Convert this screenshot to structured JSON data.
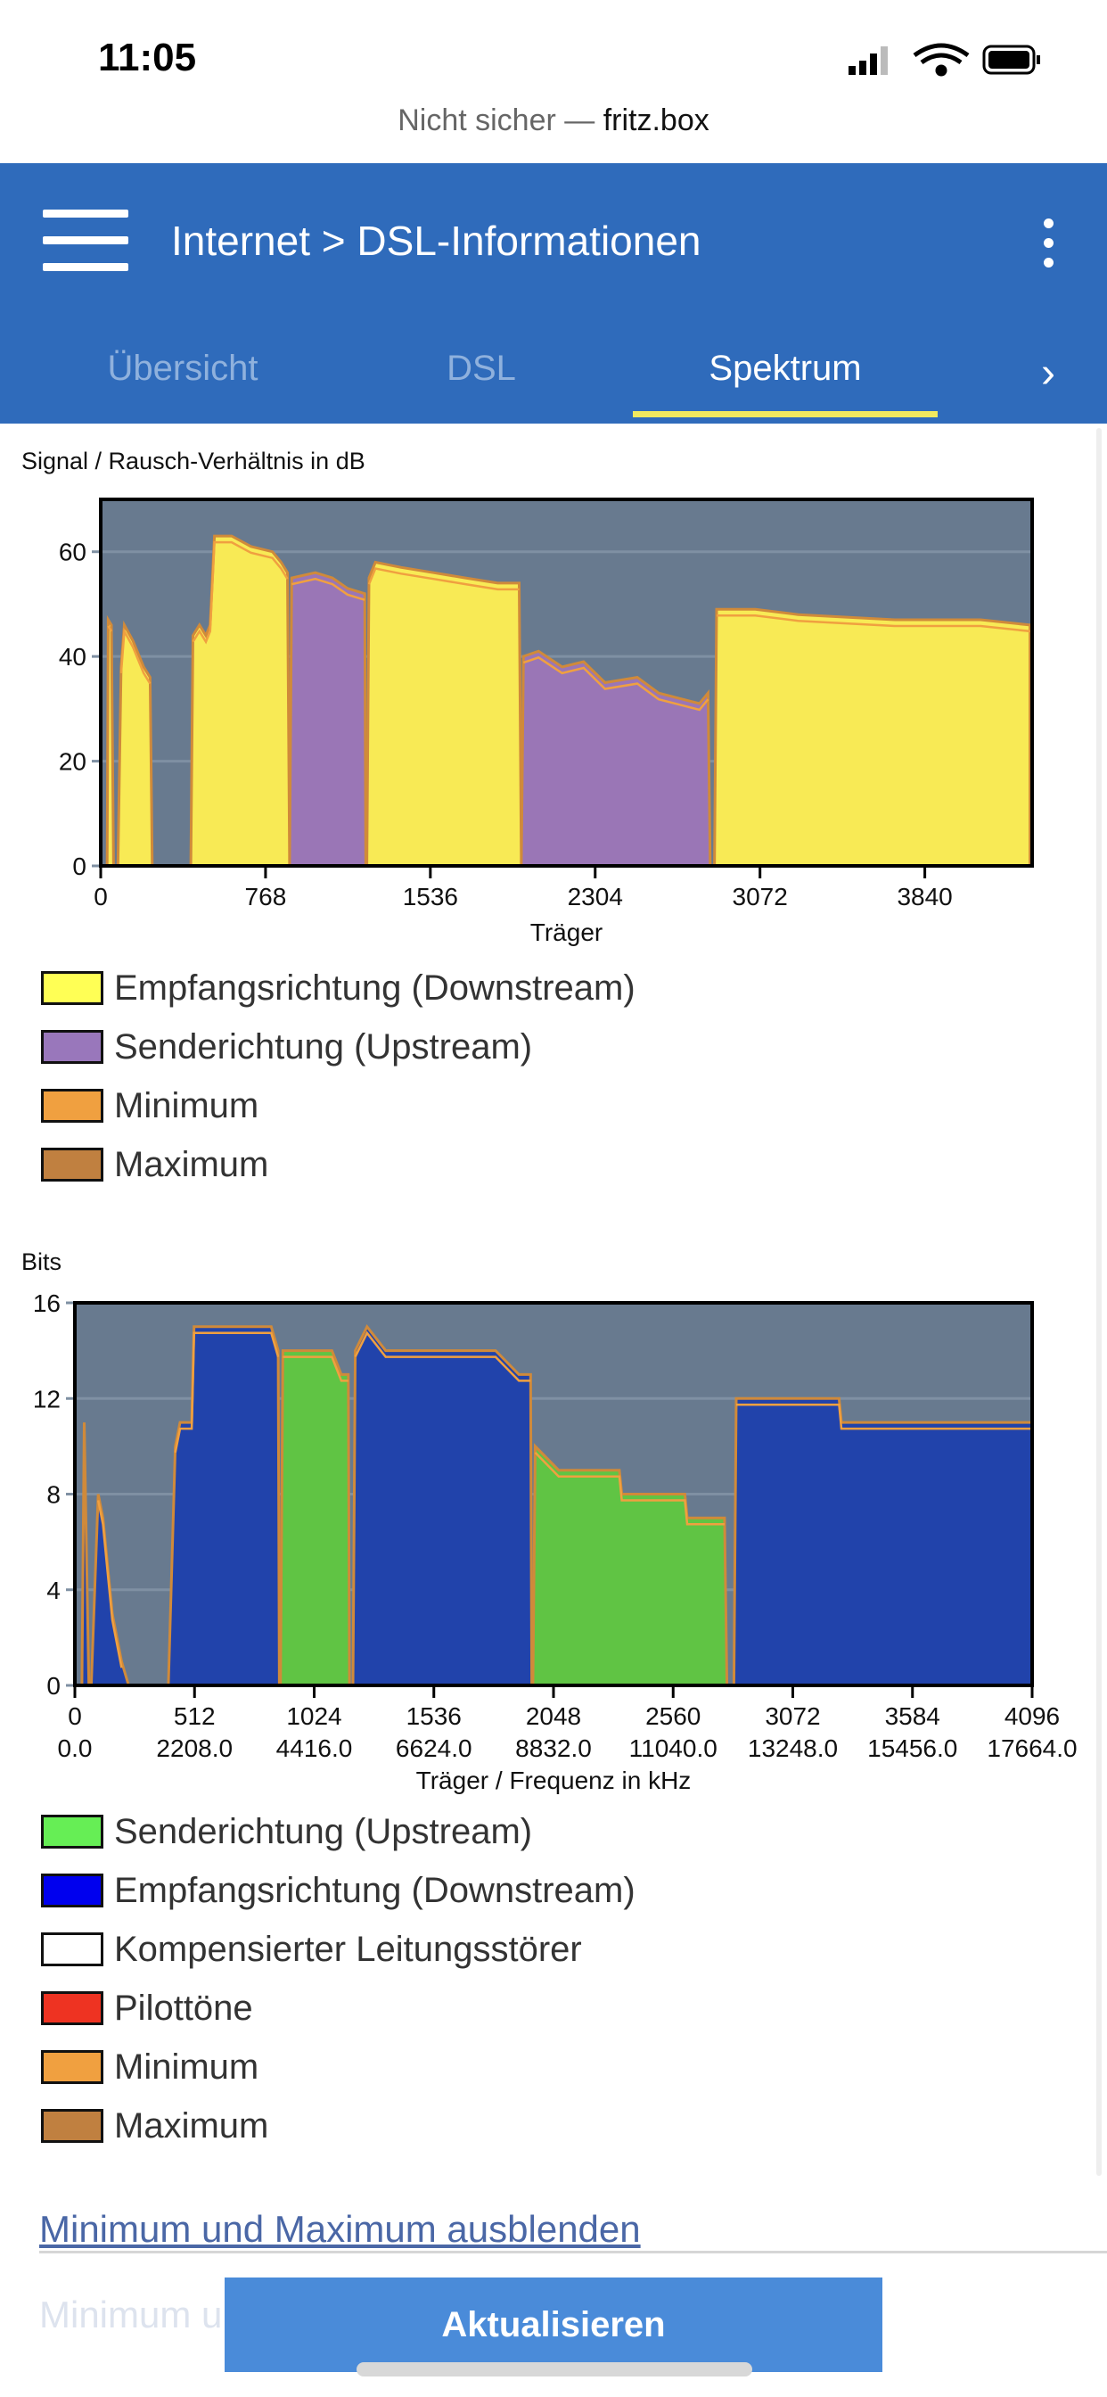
{
  "status_bar": {
    "time": "11:05",
    "url_prefix": "Nicht sicher — ",
    "url_host": "fritz.box",
    "icons": [
      "signal-icon",
      "wifi-icon",
      "battery-icon"
    ]
  },
  "header": {
    "title": "Internet > DSL-Informationen",
    "tabs": [
      {
        "label": "Übersicht",
        "active": false
      },
      {
        "label": "DSL",
        "active": false
      },
      {
        "label": "Spektrum",
        "active": true
      }
    ],
    "colors": {
      "bar": "#2f6bbb",
      "underline": "#f1e95f"
    }
  },
  "chart_data": [
    {
      "type": "area",
      "title": "Signal / Rausch-Verhältnis in dB",
      "xlabel": "Träger",
      "xlim": [
        0,
        4340
      ],
      "ylim": [
        0,
        70
      ],
      "xticks": [
        "0",
        "768",
        "1536",
        "2304",
        "3072",
        "3840"
      ],
      "yticks": [
        "0",
        "20",
        "40",
        "60"
      ],
      "grid": true,
      "series": [
        {
          "name": "Empfangsrichtung (Downstream)",
          "color": "#f8ea55",
          "segments": [
            [
              [
                30,
                0
              ],
              [
                35,
                47
              ],
              [
                50,
                46
              ],
              [
                60,
                0
              ]
            ],
            [
              [
                80,
                0
              ],
              [
                95,
                38
              ],
              [
                110,
                46
              ],
              [
                150,
                43
              ],
              [
                200,
                38
              ],
              [
                230,
                36
              ],
              [
                240,
                0
              ]
            ],
            [
              [
                420,
                0
              ],
              [
                430,
                44
              ],
              [
                460,
                46
              ],
              [
                490,
                44
              ],
              [
                510,
                46
              ],
              [
                530,
                63
              ],
              [
                610,
                63
              ],
              [
                700,
                61
              ],
              [
                800,
                60
              ],
              [
                840,
                58
              ],
              [
                870,
                56
              ],
              [
                880,
                0
              ]
            ],
            [
              [
                1240,
                0
              ],
              [
                1250,
                55
              ],
              [
                1280,
                58
              ],
              [
                1400,
                57
              ],
              [
                1550,
                56
              ],
              [
                1700,
                55
              ],
              [
                1850,
                54
              ],
              [
                1950,
                54
              ],
              [
                1960,
                0
              ]
            ],
            [
              [
                2860,
                0
              ],
              [
                2870,
                49
              ],
              [
                3050,
                49
              ],
              [
                3250,
                48
              ],
              [
                3700,
                47
              ],
              [
                4100,
                47
              ],
              [
                4330,
                46
              ],
              [
                4330,
                0
              ]
            ]
          ]
        },
        {
          "name": "Senderichtung (Upstream)",
          "color": "#9a76b6",
          "segments": [
            [
              [
                880,
                0
              ],
              [
                890,
                55
              ],
              [
                1000,
                56
              ],
              [
                1080,
                55
              ],
              [
                1150,
                53
              ],
              [
                1230,
                52
              ],
              [
                1235,
                0
              ]
            ],
            [
              [
                1960,
                0
              ],
              [
                1970,
                40
              ],
              [
                2040,
                41
              ],
              [
                2150,
                38
              ],
              [
                2250,
                39
              ],
              [
                2350,
                35
              ],
              [
                2500,
                36
              ],
              [
                2600,
                33
              ],
              [
                2790,
                31
              ],
              [
                2830,
                33
              ],
              [
                2840,
                0
              ]
            ]
          ]
        }
      ],
      "legend": [
        {
          "label": "Empfangsrichtung (Downstream)",
          "color": "#ffff55"
        },
        {
          "label": "Senderichtung (Upstream)",
          "color": "#9977bb"
        },
        {
          "label": "Minimum",
          "color": "#f0a040"
        },
        {
          "label": "Maximum",
          "color": "#c08040"
        }
      ]
    },
    {
      "type": "area",
      "title": "Bits",
      "xlabel": "Träger / Frequenz in kHz",
      "xlim": [
        0,
        4096
      ],
      "ylim": [
        0,
        16
      ],
      "xticks": [
        "0",
        "512",
        "1024",
        "1536",
        "2048",
        "2560",
        "3072",
        "3584",
        "4096"
      ],
      "xticks2": [
        "0.0",
        "2208.0",
        "4416.0",
        "6624.0",
        "8832.0",
        "11040.0",
        "13248.0",
        "15456.0",
        "17664.0"
      ],
      "yticks": [
        "0",
        "4",
        "8",
        "12",
        "16"
      ],
      "grid": true,
      "series": [
        {
          "name": "Senderichtung (Upstream)",
          "color": "#60c444",
          "segments": [
            [
              [
                880,
                0
              ],
              [
                890,
                14
              ],
              [
                1100,
                14
              ],
              [
                1140,
                13
              ],
              [
                1170,
                13
              ],
              [
                1175,
                0
              ]
            ],
            [
              [
                1960,
                0
              ],
              [
                1970,
                10
              ],
              [
                2070,
                9
              ],
              [
                2330,
                9
              ],
              [
                2340,
                8
              ],
              [
                2610,
                8
              ],
              [
                2620,
                7
              ],
              [
                2780,
                7
              ],
              [
                2790,
                0
              ]
            ]
          ]
        },
        {
          "name": "Empfangsrichtung (Downstream)",
          "color": "#2143ab",
          "segments": [
            [
              [
                30,
                0
              ],
              [
                40,
                11
              ],
              [
                60,
                0
              ]
            ],
            [
              [
                70,
                0
              ],
              [
                100,
                8
              ],
              [
                120,
                7
              ],
              [
                140,
                5
              ],
              [
                160,
                3
              ],
              [
                200,
                1
              ],
              [
                230,
                0
              ]
            ],
            [
              [
                400,
                0
              ],
              [
                430,
                10
              ],
              [
                450,
                11
              ],
              [
                500,
                11
              ],
              [
                510,
                15
              ],
              [
                840,
                15
              ],
              [
                870,
                14
              ],
              [
                875,
                0
              ]
            ],
            [
              [
                1190,
                0
              ],
              [
                1200,
                14
              ],
              [
                1250,
                15
              ],
              [
                1330,
                14
              ],
              [
                1800,
                14
              ],
              [
                1900,
                13
              ],
              [
                1950,
                13
              ],
              [
                1955,
                0
              ]
            ],
            [
              [
                2820,
                0
              ],
              [
                2830,
                12
              ],
              [
                3270,
                12
              ],
              [
                3280,
                11
              ],
              [
                4096,
                11
              ],
              [
                4096,
                0
              ]
            ]
          ]
        }
      ],
      "legend": [
        {
          "label": "Senderichtung (Upstream)",
          "color": "#66ee55"
        },
        {
          "label": "Empfangsrichtung (Downstream)",
          "color": "#0000ee"
        },
        {
          "label": "Kompensierter Leitungsstörer",
          "color": "#ffffff"
        },
        {
          "label": "Pilottöne",
          "color": "#ee3322"
        },
        {
          "label": "Minimum",
          "color": "#f0a040"
        },
        {
          "label": "Maximum",
          "color": "#c08040"
        }
      ]
    }
  ],
  "footer": {
    "link": "Minimum und Maximum ausblenden",
    "faded_text": "Minimum u",
    "refresh_button": "Aktualisieren"
  }
}
